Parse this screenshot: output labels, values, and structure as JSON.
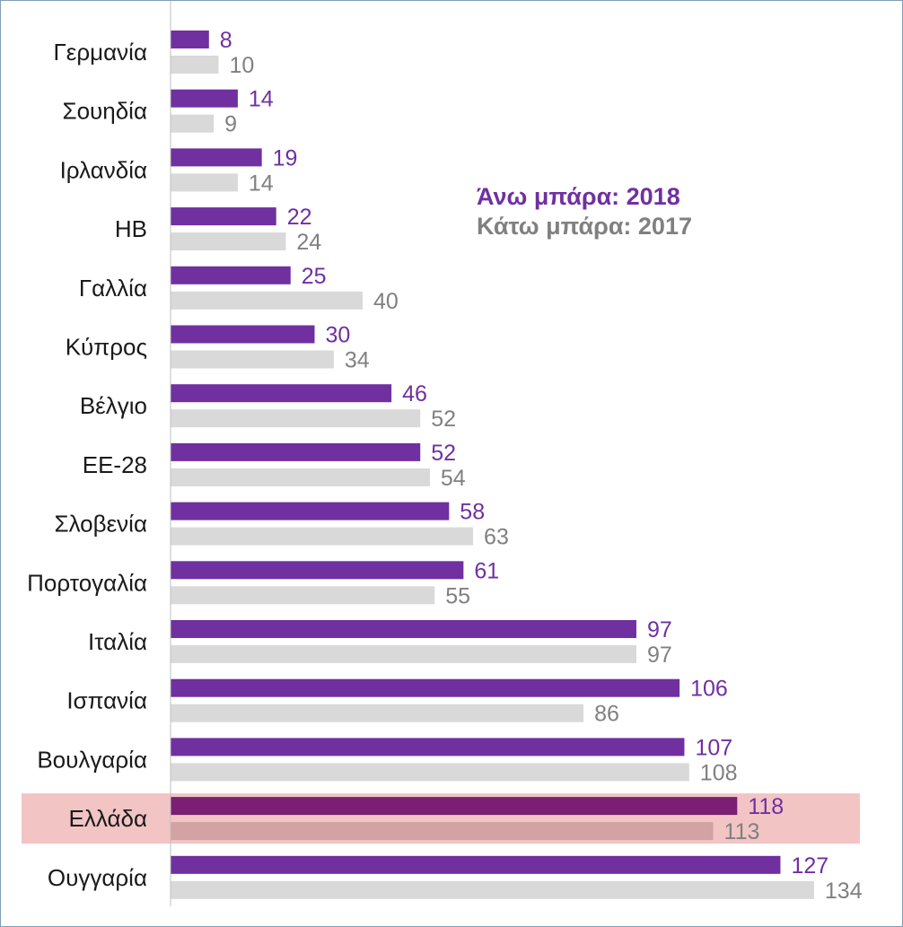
{
  "chart_data": {
    "type": "bar",
    "orientation": "horizontal",
    "categories": [
      "Γερμανία",
      "Σουηδία",
      "Ιρλανδία",
      "ΗΒ",
      "Γαλλία",
      "Κύπρος",
      "Βέλγιο",
      "ΕΕ-28",
      "Σλοβενία",
      "Πορτογαλία",
      "Ιταλία",
      "Ισπανία",
      "Βουλγαρία",
      "Ελλάδα",
      "Ουγγαρία"
    ],
    "series": [
      {
        "name": "2018",
        "values": [
          8,
          14,
          19,
          22,
          25,
          30,
          46,
          52,
          58,
          61,
          97,
          106,
          107,
          118,
          127
        ]
      },
      {
        "name": "2017",
        "values": [
          10,
          9,
          14,
          24,
          40,
          34,
          52,
          54,
          63,
          55,
          97,
          86,
          108,
          113,
          134
        ]
      }
    ],
    "xlim": [
      0,
      145
    ],
    "highlight_category": "Ελλάδα",
    "legend": {
      "placement": "upper-right",
      "line1": "Άνω μπάρα: 2018",
      "line2": "Κάτω μπάρα: 2017"
    },
    "colors": {
      "series_2018": "#7030a0",
      "series_2017": "#d9d9d9",
      "label_2018": "#7030a0",
      "label_2017": "#808080",
      "highlight_band": "#f2c4c4",
      "highlight_2018": "#7a1f74",
      "highlight_2017": "#d3a2a2",
      "axis": "#bfbfbf"
    }
  }
}
